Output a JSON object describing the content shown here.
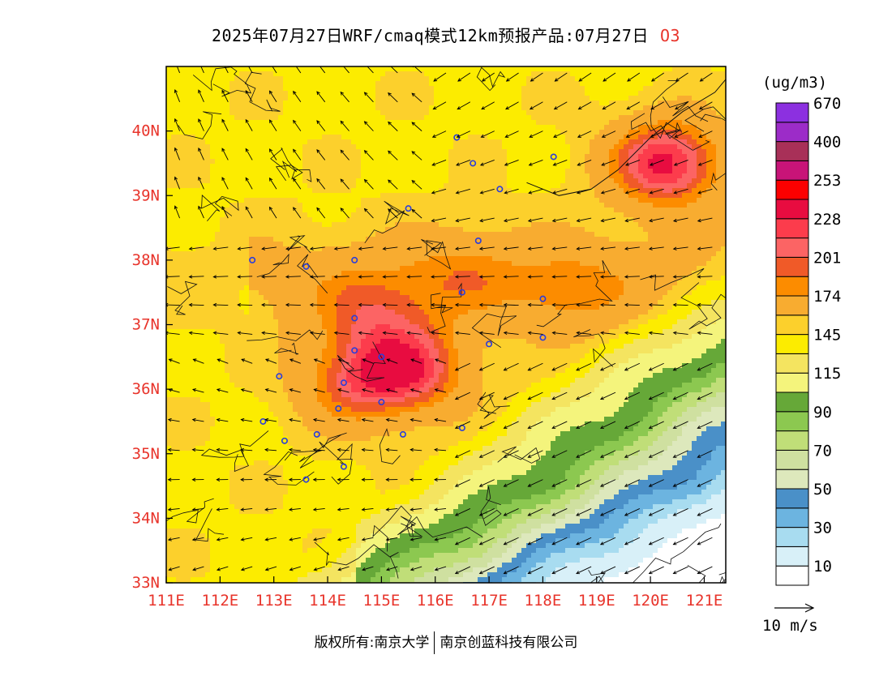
{
  "title": {
    "main": "2025年07月27日WRF/cmaq模式12km预报产品:07月27日",
    "pollutant": "O3"
  },
  "legend": {
    "unit": "(ug/m3)",
    "colors": [
      "#ffffff",
      "#d8f0f8",
      "#a8dcf0",
      "#6cb4e0",
      "#4a90c8",
      "#dde8bc",
      "#cfe0a0",
      "#c0de78",
      "#8cc850",
      "#66a838",
      "#f4f47c",
      "#f4e460",
      "#fcec00",
      "#fcd02c",
      "#f8ac30",
      "#fc8c00",
      "#f05a28",
      "#fc6464",
      "#fc3c4c",
      "#e80c40",
      "#fc0000",
      "#c81478",
      "#a83058",
      "#9c2cc8",
      "#8c30e0"
    ],
    "labels": [
      "10",
      "30",
      "50",
      "70",
      "90",
      "115",
      "145",
      "174",
      "201",
      "228",
      "253",
      "400",
      "670"
    ]
  },
  "axes": {
    "x_ticks": [
      "111E",
      "112E",
      "113E",
      "114E",
      "115E",
      "116E",
      "117E",
      "118E",
      "119E",
      "120E",
      "121E"
    ],
    "y_ticks": [
      "33N",
      "34N",
      "35N",
      "36N",
      "37N",
      "38N",
      "39N",
      "40N"
    ]
  },
  "wind_scale": {
    "label": "10 m/s"
  },
  "footer": {
    "copyright": "版权所有:南京大学",
    "company": "南京创蓝科技有限公司"
  },
  "map": {
    "pollutant": "O3",
    "lon_range": [
      111,
      121.4
    ],
    "lat_range": [
      33,
      41
    ],
    "hotspots": [
      {
        "lon": 120.3,
        "lat": 39.5,
        "value": 250
      },
      {
        "lon": 115.6,
        "lat": 36.3,
        "value": 225
      },
      {
        "lon": 114.5,
        "lat": 36.1,
        "value": 210
      },
      {
        "lon": 114.8,
        "lat": 37.2,
        "value": 195
      },
      {
        "lon": 116.5,
        "lat": 37.8,
        "value": 180
      },
      {
        "lon": 118.5,
        "lat": 37.5,
        "value": 185
      }
    ],
    "cities": [
      [
        116.4,
        39.9
      ],
      [
        117.2,
        39.1
      ],
      [
        114.5,
        38.0
      ],
      [
        115.5,
        38.8
      ],
      [
        112.6,
        38.0
      ],
      [
        113.6,
        37.9
      ],
      [
        116.5,
        37.5
      ],
      [
        117.0,
        36.7
      ],
      [
        118.0,
        36.8
      ],
      [
        118.0,
        37.4
      ],
      [
        115.0,
        36.5
      ],
      [
        114.5,
        36.6
      ],
      [
        114.5,
        37.1
      ],
      [
        114.3,
        36.1
      ],
      [
        113.1,
        36.2
      ],
      [
        112.8,
        35.5
      ],
      [
        113.2,
        35.2
      ],
      [
        113.8,
        35.3
      ],
      [
        114.2,
        35.7
      ],
      [
        115.0,
        35.8
      ],
      [
        115.4,
        35.3
      ],
      [
        116.5,
        35.4
      ],
      [
        114.3,
        34.8
      ],
      [
        113.6,
        34.6
      ],
      [
        118.2,
        39.6
      ],
      [
        116.8,
        38.3
      ],
      [
        116.7,
        39.5
      ]
    ]
  }
}
